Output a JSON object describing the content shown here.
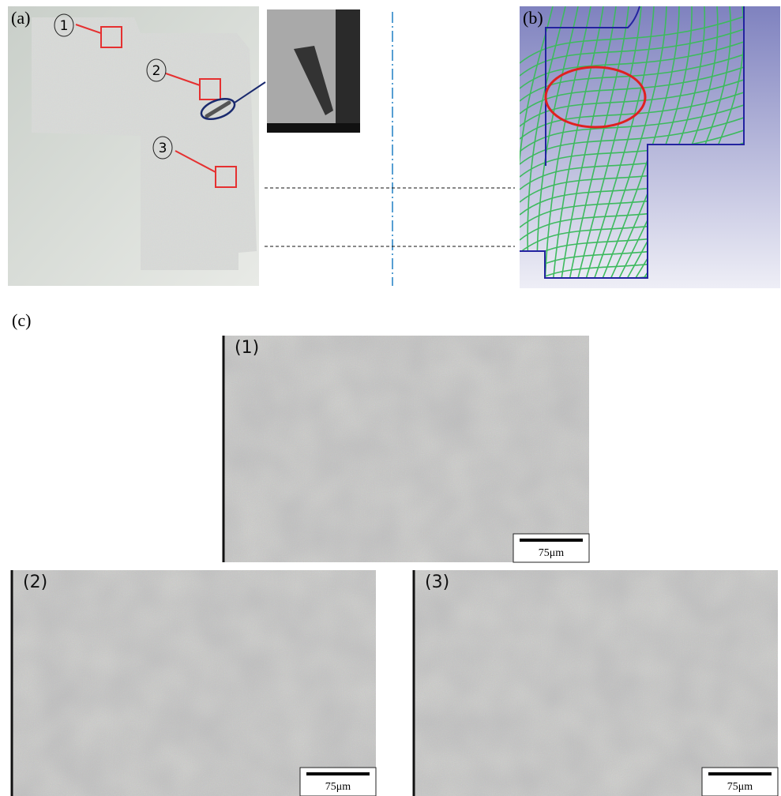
{
  "panels": {
    "a": {
      "label": "(a)",
      "markers": [
        "1",
        "2",
        "3"
      ]
    },
    "b": {
      "label": "(b)"
    },
    "c": {
      "label": "(c)",
      "micrographs": [
        {
          "label": "(1)",
          "scale_bar": "75μm"
        },
        {
          "label": "(2)",
          "scale_bar": "75μm"
        },
        {
          "label": "(3)",
          "scale_bar": "75μm"
        }
      ]
    }
  }
}
